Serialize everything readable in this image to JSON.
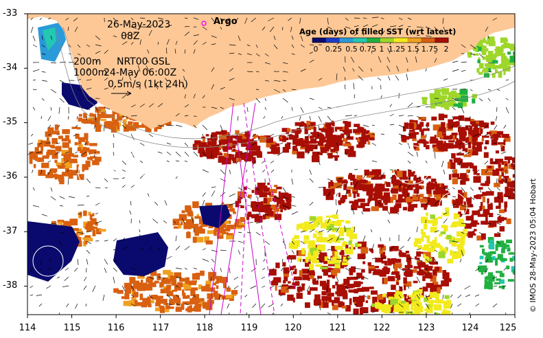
{
  "date_line": "26-May-2023",
  "hour_line": "08Z",
  "argo_label": "Argo",
  "contour_labels": [
    "200m",
    "1000m"
  ],
  "product_line": "NRT00 GSL",
  "time_line": "24-May 06:00Z",
  "scale_label": "0.5m/s (1kt 24h)",
  "colorbar": {
    "title": "Age (days) of filled SST (wrt latest)",
    "ticks": [
      "0",
      "0.25",
      "0.5",
      "0.75",
      "1",
      "1.25",
      "1.5",
      "1.75",
      "2"
    ],
    "colors": [
      "#0a0a6e",
      "#1c3cc8",
      "#2a9ad8",
      "#22c8b0",
      "#20b040",
      "#9ed62a",
      "#f2ea1c",
      "#f0a020",
      "#d86010",
      "#a80e04"
    ]
  },
  "credit": "© IMOS 28-May-2023 05:04 Hobart",
  "axes": {
    "lon_ticks": [
      "114",
      "115",
      "116",
      "117",
      "118",
      "119",
      "120",
      "121",
      "122",
      "123",
      "124",
      "125"
    ],
    "lat_ticks": [
      "-33",
      "-34",
      "-35",
      "-36",
      "-37",
      "-38"
    ]
  },
  "colors": {
    "land": "#fdc896",
    "age_0": "#0a0a6e",
    "age_2": "#a80e04"
  }
}
